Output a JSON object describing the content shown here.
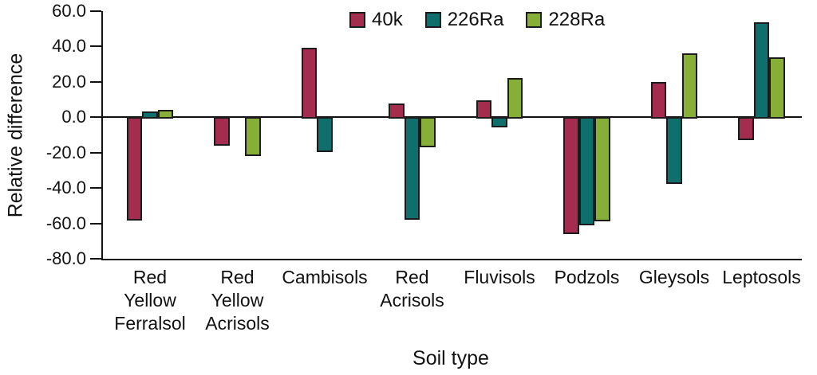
{
  "chart_data": {
    "type": "bar",
    "title": "",
    "xlabel": "Soil type",
    "ylabel": "Relative difference",
    "ylim": [
      -80,
      60
    ],
    "yticks": [
      60,
      40,
      20,
      0,
      -20,
      -40,
      -60,
      -80
    ],
    "grid": false,
    "legend_position": "top-center",
    "categories": [
      "Red Yellow Ferralsol",
      "Red Yellow Acrisols",
      "Cambisols",
      "Red Acrisols",
      "Fluvisols",
      "Podzols",
      "Gleysols",
      "Leptosols"
    ],
    "category_lines": [
      [
        "Red",
        "Yellow",
        "Ferralsol"
      ],
      [
        "Red",
        "Yellow",
        "Acrisols"
      ],
      [
        "Cambisols"
      ],
      [
        "Red",
        "Acrisols"
      ],
      [
        "Fluvisols"
      ],
      [
        "Podzols"
      ],
      [
        "Gleysols"
      ],
      [
        "Leptosols"
      ]
    ],
    "series": [
      {
        "name": "40k",
        "color": "#A32C4F",
        "values": [
          -57.5,
          -15,
          39.5,
          8,
          9.5,
          -65,
          20,
          -12
        ]
      },
      {
        "name": "226Ra",
        "color": "#0E6F6D",
        "values": [
          3.5,
          0,
          -19,
          -57,
          -5,
          -60,
          -37,
          53.5
        ]
      },
      {
        "name": "228Ra",
        "color": "#87AE37",
        "values": [
          4,
          -21,
          0,
          -16,
          22,
          -58,
          36,
          34
        ]
      }
    ],
    "colors": {
      "bar_border": "#1B1B1B",
      "axis": "#111111",
      "background": "#FFFFFF"
    }
  }
}
